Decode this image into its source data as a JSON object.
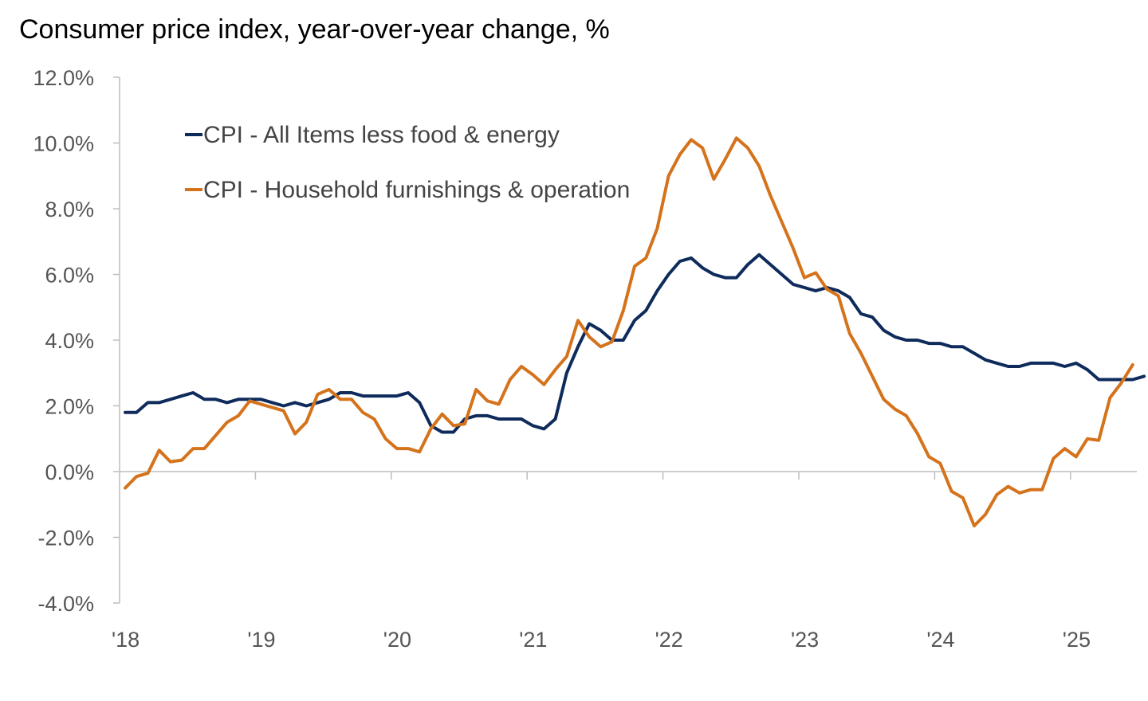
{
  "chart_data": {
    "type": "line",
    "title": "Consumer price index, year-over-year change, %",
    "xlabel": "",
    "ylabel": "",
    "ylim": [
      -4.0,
      12.0
    ],
    "yticks": [
      "-4.0%",
      "-2.0%",
      "0.0%",
      "2.0%",
      "4.0%",
      "6.0%",
      "8.0%",
      "10.0%",
      "12.0%"
    ],
    "ytick_values": [
      -4,
      -2,
      0,
      2,
      4,
      6,
      8,
      10,
      12
    ],
    "xticks": [
      "'18",
      "'19",
      "'20",
      "'21",
      "'22",
      "'23",
      "'24",
      "'25"
    ],
    "x_start": "2018-01",
    "x_frequency": "monthly",
    "legend_position": "top-left",
    "series": [
      {
        "name": "CPI - All Items less food & energy",
        "color": "#0e2b5c",
        "values": [
          1.8,
          1.8,
          2.1,
          2.1,
          2.2,
          2.3,
          2.4,
          2.2,
          2.2,
          2.1,
          2.2,
          2.2,
          2.2,
          2.1,
          2.0,
          2.1,
          2.0,
          2.1,
          2.2,
          2.4,
          2.4,
          2.3,
          2.3,
          2.3,
          2.3,
          2.4,
          2.1,
          1.4,
          1.2,
          1.2,
          1.6,
          1.7,
          1.7,
          1.6,
          1.6,
          1.6,
          1.4,
          1.3,
          1.6,
          3.0,
          3.8,
          4.5,
          4.3,
          4.0,
          4.0,
          4.6,
          4.9,
          5.5,
          6.0,
          6.4,
          6.5,
          6.2,
          6.0,
          5.9,
          5.9,
          6.3,
          6.6,
          6.3,
          6.0,
          5.7,
          5.6,
          5.5,
          5.6,
          5.5,
          5.3,
          4.8,
          4.7,
          4.3,
          4.1,
          4.0,
          4.0,
          3.9,
          3.9,
          3.8,
          3.8,
          3.6,
          3.4,
          3.3,
          3.2,
          3.2,
          3.3,
          3.3,
          3.3,
          3.2,
          3.3,
          3.1,
          2.8,
          2.8,
          2.8,
          2.8,
          2.9
        ]
      },
      {
        "name": "CPI - Household furnishings & operation",
        "color": "#d4731c",
        "values": [
          -0.5,
          -0.15,
          -0.05,
          0.65,
          0.3,
          0.35,
          0.7,
          0.7,
          1.1,
          1.5,
          1.7,
          2.15,
          2.05,
          1.95,
          1.85,
          1.15,
          1.5,
          2.35,
          2.5,
          2.2,
          2.2,
          1.8,
          1.6,
          1.0,
          0.7,
          0.7,
          0.6,
          1.3,
          1.75,
          1.4,
          1.45,
          2.5,
          2.15,
          2.05,
          2.8,
          3.2,
          2.95,
          2.65,
          3.1,
          3.5,
          4.6,
          4.1,
          3.8,
          3.95,
          4.9,
          6.25,
          6.5,
          7.4,
          9.0,
          9.65,
          10.1,
          9.85,
          8.9,
          9.5,
          10.15,
          9.85,
          9.3,
          8.4,
          7.6,
          6.8,
          5.9,
          6.05,
          5.55,
          5.35,
          4.2,
          3.6,
          2.9,
          2.2,
          1.9,
          1.7,
          1.15,
          0.45,
          0.25,
          -0.6,
          -0.8,
          -1.65,
          -1.3,
          -0.7,
          -0.45,
          -0.65,
          -0.55,
          -0.55,
          0.4,
          0.7,
          0.45,
          1.0,
          0.95,
          2.25,
          2.7,
          3.25
        ]
      }
    ]
  }
}
